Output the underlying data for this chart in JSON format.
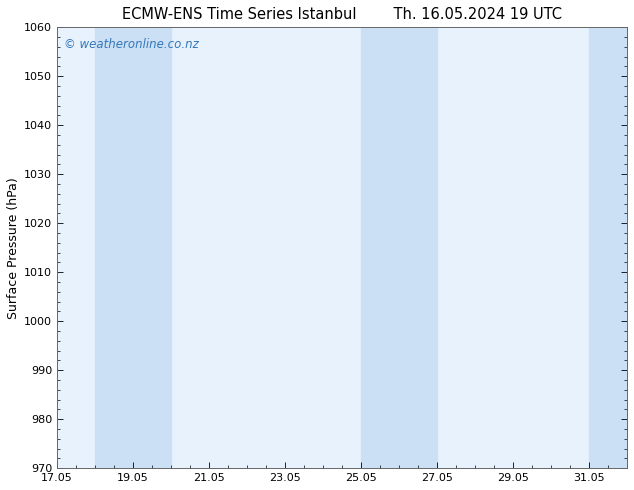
{
  "title_left": "ECMW-ENS Time Series Istanbul",
  "title_right": "Th. 16.05.2024 19 UTC",
  "ylabel": "Surface Pressure (hPa)",
  "ylim": [
    970,
    1060
  ],
  "yticks": [
    970,
    980,
    990,
    1000,
    1010,
    1020,
    1030,
    1040,
    1050,
    1060
  ],
  "xlim_start": 17.05,
  "xlim_end": 32.05,
  "xtick_labels": [
    "17.05",
    "19.05",
    "21.05",
    "23.05",
    "25.05",
    "27.05",
    "29.05",
    "31.05"
  ],
  "xtick_positions": [
    17.05,
    19.05,
    21.05,
    23.05,
    25.05,
    27.05,
    29.05,
    31.05
  ],
  "plot_bg_color": "#e8f2fc",
  "fig_bg_color": "#ffffff",
  "shaded_bands": [
    {
      "x_start": 18.05,
      "x_end": 19.05,
      "color": "#cce0f5"
    },
    {
      "x_start": 19.05,
      "x_end": 20.05,
      "color": "#cce0f5"
    },
    {
      "x_start": 25.05,
      "x_end": 26.05,
      "color": "#cce0f5"
    },
    {
      "x_start": 26.05,
      "x_end": 27.05,
      "color": "#cce0f5"
    },
    {
      "x_start": 31.05,
      "x_end": 32.05,
      "color": "#cce0f5"
    }
  ],
  "watermark_text": "© weatheronline.co.nz",
  "watermark_color": "#3377bb",
  "watermark_fontsize": 8.5,
  "title_fontsize": 10.5,
  "tick_fontsize": 8,
  "ylabel_fontsize": 9
}
